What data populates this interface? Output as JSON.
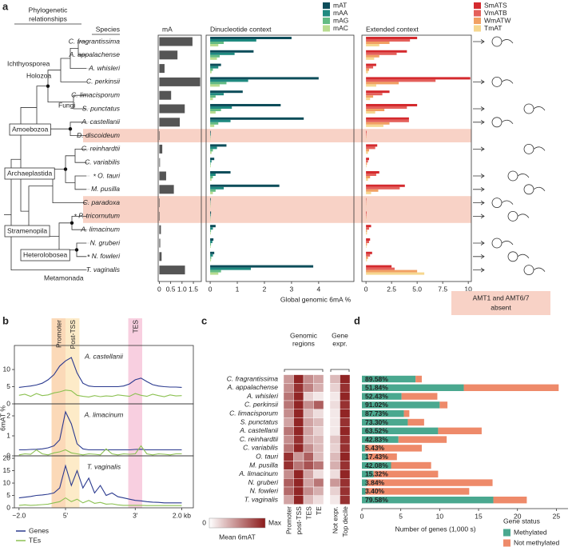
{
  "panel_labels": [
    "a",
    "b",
    "c",
    "d"
  ],
  "tree": {
    "header": [
      "Phylogenetic",
      "relationships"
    ],
    "species_header": "Species",
    "species": [
      "C. fragrantissima",
      "A. appalachense",
      "A. whisleri",
      "C. perkinsii",
      "C. limacisporum",
      "S. punctatus",
      "A. castellanii",
      "D. discoideum",
      "C. reinhardtii",
      "C. variabilis",
      "O. tauri",
      "M. pusilla",
      "C. paradoxa",
      "P. tricornutum",
      "A. limacinum",
      "N. gruberi",
      "N. fowleri",
      "T. vaginalis"
    ],
    "star": "*",
    "starred": [
      10,
      13,
      16
    ],
    "clades": [
      {
        "name": "Ichthyosporea",
        "boxed": false
      },
      {
        "name": "Holozoa",
        "boxed": false
      },
      {
        "name": "Fungi",
        "boxed": false
      },
      {
        "name": "Amoebozoa",
        "boxed": true
      },
      {
        "name": "Archaeplastida",
        "boxed": true
      },
      {
        "name": "Stramenopila",
        "boxed": true
      },
      {
        "name": "Heterolobosea",
        "boxed": true
      },
      {
        "name": "Metamonada",
        "boxed": false
      }
    ]
  },
  "highlight": {
    "rows": [
      7,
      12,
      13
    ],
    "color": "#f8d2c6",
    "note": [
      "AMT1 and AMT6/7",
      "absent"
    ]
  },
  "chart_data": [
    {
      "type": "bar",
      "orientation": "horizontal",
      "title": "mA",
      "color": "#555555",
      "values": [
        1.46,
        0.8,
        0.23,
        1.8,
        0.52,
        1.12,
        0.9,
        0.02,
        0.13,
        0.03,
        0.3,
        0.64,
        0.02,
        0.02,
        0.07,
        0.04,
        0.1,
        1.13
      ],
      "xlim": [
        -0.05,
        1.85
      ],
      "xticks": [
        0,
        0.5,
        {
          "value": 1,
          "label": "1.0"
        },
        1.5
      ]
    },
    {
      "type": "bar",
      "orientation": "horizontal",
      "title": "Dinucleotide context",
      "xlabel": "Global genomic 6mA %",
      "series": [
        {
          "name": "mAT",
          "color": "#0d4d5a",
          "values": [
            3.0,
            1.6,
            0.4,
            4.0,
            1.2,
            2.6,
            3.45,
            0.02,
            0.6,
            0.15,
            0.75,
            2.55,
            0.02,
            0.03,
            0.2,
            0.12,
            0.15,
            3.8
          ]
        },
        {
          "name": "mAA",
          "color": "#1f8a80",
          "values": [
            1.7,
            0.9,
            0.3,
            1.4,
            0.5,
            0.8,
            0.75,
            0.02,
            0.25,
            0.05,
            0.2,
            0.5,
            0.01,
            0.02,
            0.1,
            0.08,
            0.1,
            1.5
          ]
        },
        {
          "name": "mAG",
          "color": "#63bb84",
          "values": [
            0.5,
            0.35,
            0.1,
            0.6,
            0.2,
            0.4,
            0.3,
            0.01,
            0.1,
            0.02,
            0.1,
            0.2,
            0.01,
            0.01,
            0.03,
            0.03,
            0.04,
            0.4
          ]
        },
        {
          "name": "mAC",
          "color": "#b8dc90",
          "values": [
            0.3,
            0.25,
            0.05,
            0.35,
            0.1,
            0.2,
            0.15,
            0.01,
            0.05,
            0.02,
            0.05,
            0.1,
            0.01,
            0.01,
            0.02,
            0.02,
            0.03,
            0.3
          ]
        }
      ],
      "xlim": [
        -0.15,
        5.3
      ],
      "xticks": [
        0,
        1,
        2,
        3,
        4
      ]
    },
    {
      "type": "bar",
      "orientation": "horizontal",
      "title": "Extended context",
      "series": [
        {
          "name": "SmATS",
          "color": "#d42a2e",
          "values": [
            5.0,
            4.0,
            1.0,
            10.2,
            2.3,
            5.0,
            4.2,
            0.05,
            1.1,
            0.3,
            1.3,
            3.8,
            0.03,
            0.05,
            0.5,
            0.4,
            0.6,
            2.5
          ]
        },
        {
          "name": "VmATB",
          "color": "#e4605b",
          "values": [
            4.3,
            3.0,
            0.7,
            6.8,
            1.6,
            4.0,
            4.2,
            0.04,
            0.9,
            0.2,
            1.0,
            3.3,
            0.02,
            0.04,
            0.3,
            0.3,
            0.4,
            2.8
          ]
        },
        {
          "name": "WmATW",
          "color": "#f1a063",
          "values": [
            2.3,
            1.3,
            0.3,
            3.2,
            0.7,
            1.8,
            2.3,
            0.03,
            0.3,
            0.1,
            0.4,
            1.2,
            0.02,
            0.03,
            0.1,
            0.1,
            0.2,
            5.0
          ]
        },
        {
          "name": "TmAT",
          "color": "#f6d78f",
          "values": [
            1.3,
            0.8,
            0.2,
            1.0,
            0.4,
            0.9,
            1.7,
            0.02,
            0.2,
            0.05,
            0.2,
            0.5,
            0.01,
            0.02,
            0.1,
            0.05,
            0.1,
            5.7
          ]
        }
      ],
      "xlim": [
        -0.4,
        10.3
      ],
      "xticks": [
        0,
        2.5,
        {
          "value": 5,
          "label": "5.0"
        },
        7.5,
        10
      ]
    },
    {
      "type": "line",
      "ylabel": "6mAT %",
      "x": [
        -2,
        -1.75,
        -1.5,
        -1.25,
        -1,
        -0.75,
        -0.5,
        -0.25,
        0,
        0.25,
        0.5,
        0.75,
        1,
        1.25,
        1.5,
        1.75,
        2,
        2.25,
        2.5,
        2.75,
        3,
        3.25,
        3.5,
        3.75,
        4,
        4.25,
        4.5,
        4.75,
        5
      ],
      "xlim": [
        -2.2,
        5.5
      ],
      "xticks": [
        {
          "value": -2,
          "label": "−2.0"
        },
        {
          "value": 0,
          "label": "5'"
        },
        {
          "value": 3,
          "label": "3'"
        },
        {
          "value": 5,
          "label": "2.0 kb"
        }
      ],
      "bands": [
        {
          "label": "Promoter",
          "from": -0.6,
          "to": 0,
          "color": "#fbd9b8"
        },
        {
          "label": "Post-TSS",
          "from": 0,
          "to": 0.6,
          "color": "#fdebc8"
        },
        {
          "label": "TES",
          "from": 2.7,
          "to": 3.3,
          "color": "#f8cfe0"
        }
      ],
      "series": [
        {
          "name": "Genes",
          "color": "#2b3a8f"
        },
        {
          "name": "TEs",
          "color": "#8cc152"
        }
      ],
      "panels": [
        {
          "title": "A. castellanii",
          "ylim": [
            0,
            17
          ],
          "yticks": [
            0,
            5,
            10
          ],
          "values": [
            [
              4.8,
              5,
              5.2,
              5.5,
              6,
              7,
              8.5,
              11,
              12.5,
              13.5,
              9,
              6,
              5.2,
              5,
              5,
              5,
              5,
              5,
              5.2,
              5.8,
              7,
              7.5,
              6.5,
              5.6,
              5.2,
              5,
              4.9,
              4.9,
              4.8
            ],
            [
              2.5,
              2.8,
              2.2,
              3,
              2.4,
              2.6,
              3.2,
              3.5,
              4,
              3.8,
              2.5,
              2.2,
              2,
              2.4,
              2.1,
              2.3,
              2.2,
              2.6,
              2.4,
              2.2,
              3,
              2.5,
              2.2,
              2.8,
              2.4,
              2.1,
              2.6,
              2.3,
              2.4
            ]
          ]
        },
        {
          "title": "A. limacinum",
          "ylim": [
            0,
            2.6
          ],
          "yticks": [
            0,
            1,
            2
          ],
          "values": [
            [
              0.3,
              0.3,
              0.32,
              0.33,
              0.35,
              0.4,
              0.5,
              0.8,
              2.2,
              1.6,
              0.6,
              0.35,
              0.3,
              0.3,
              0.3,
              0.3,
              0.3,
              0.3,
              0.3,
              0.3,
              0.32,
              0.33,
              0.3,
              0.3,
              0.3,
              0.3,
              0.3,
              0.3,
              0.3
            ],
            [
              0.05,
              0.1,
              0.08,
              0.3,
              0.1,
              0.05,
              0.15,
              0.2,
              0.3,
              0.15,
              0.1,
              0.05,
              0.1,
              0.08,
              0.05,
              0.35,
              0.1,
              0.05,
              0.1,
              0.08,
              0.1,
              0.5,
              0.1,
              0.05,
              0.1,
              0.08,
              0.05,
              0.1,
              0.1
            ]
          ]
        },
        {
          "title": "T. vaginalis",
          "ylim": [
            0,
            21
          ],
          "yticks": [
            0,
            5,
            10,
            15,
            20
          ],
          "values": [
            [
              4,
              4.3,
              4.6,
              5,
              5.2,
              5.5,
              6,
              8,
              17,
              9,
              15,
              8,
              12,
              6,
              9,
              5,
              6,
              4.5,
              4,
              3.5,
              3,
              2.8,
              2.5,
              2.3,
              2.2,
              2,
              2,
              2,
              2
            ],
            [
              1,
              1.2,
              1,
              1.1,
              1.3,
              1.5,
              2,
              2.5,
              4,
              2.5,
              3.5,
              2,
              3,
              1.8,
              2.2,
              1.5,
              1.6,
              1.2,
              1,
              1,
              1,
              1,
              0.9,
              0.9,
              0.9,
              0.9,
              0.9,
              0.9,
              0.9
            ]
          ]
        }
      ]
    },
    {
      "type": "heatmap",
      "categories": [
        "C. fragrantissima",
        "A. appalachense",
        "A. whisleri",
        "C. perkinsii",
        "C. limacisporum",
        "S. punctatus",
        "A. castellanii",
        "C. reinhardtii",
        "C. variabilis",
        "O. tauri",
        "M. pusilla",
        "A. limacinum",
        "N. gruberi",
        "N. fowleri",
        "T. vaginalis"
      ],
      "column_groups": [
        {
          "title": [
            "Genomic",
            "regions"
          ],
          "columns": [
            "Promoter",
            "post-TSS",
            "TES",
            "TE"
          ]
        },
        {
          "title": [
            "Gene",
            "expr."
          ],
          "columns": [
            "Not expr.",
            "Top decile"
          ]
        }
      ],
      "values": [
        [
          0.45,
          0.95,
          0.5,
          0.4,
          0.3,
          0.95
        ],
        [
          0.5,
          0.9,
          0.55,
          0.35,
          0.2,
          0.9
        ],
        [
          0.6,
          0.95,
          0.2,
          0.1,
          0.1,
          0.95
        ],
        [
          0.6,
          0.95,
          0.5,
          0.7,
          0.15,
          0.9
        ],
        [
          0.5,
          0.95,
          0.3,
          0.15,
          0.1,
          0.95
        ],
        [
          0.4,
          0.95,
          0.4,
          0.3,
          0.1,
          0.9
        ],
        [
          0.6,
          0.95,
          0.4,
          0.2,
          0.1,
          0.95
        ],
        [
          0.5,
          0.9,
          0.35,
          0.3,
          0.25,
          0.9
        ],
        [
          0.6,
          0.95,
          0.5,
          0.3,
          0.2,
          0.9
        ],
        [
          0.9,
          0.45,
          0.7,
          0.3,
          0.3,
          0.95
        ],
        [
          0.9,
          0.6,
          0.75,
          0.6,
          0.35,
          0.9
        ],
        [
          0.5,
          0.95,
          0.4,
          0.15,
          0.15,
          0.95
        ],
        [
          0.7,
          0.95,
          0.4,
          0.6,
          0.45,
          0.9
        ],
        [
          0.65,
          0.95,
          0.5,
          0.35,
          0.2,
          0.9
        ],
        [
          0.4,
          0.95,
          0.3,
          0.15,
          0.1,
          0.9
        ]
      ],
      "zlim": [
        0,
        1
      ],
      "colors": [
        "#ffffff",
        "#8b1a1a"
      ],
      "colorbar": {
        "min_label": "0",
        "max_label": "Max",
        "title": "Mean 6mAT"
      }
    },
    {
      "type": "stacked-bar",
      "orientation": "horizontal",
      "xlabel": "Number of genes (1,000 s)",
      "legend_title": "Gene status",
      "series": [
        {
          "name": "Methylated",
          "color": "#4aa88f",
          "values": [
            6.9,
            13.1,
            5.1,
            10.0,
            5.4,
            5.9,
            9.8,
            4.7,
            0.4,
            0.8,
            3.75,
            1.5,
            0.65,
            0.47,
            16.9
          ]
        },
        {
          "name": "Not methylated",
          "color": "#ee8a6a",
          "values": [
            0.8,
            12.2,
            4.6,
            1.0,
            0.7,
            2.1,
            5.6,
            6.2,
            7.3,
            3.7,
            5.15,
            8.3,
            16.15,
            13.33,
            4.3
          ]
        }
      ],
      "percent": {
        "values": [
          89.58,
          51.84,
          52.43,
          91.02,
          87.73,
          73.3,
          63.52,
          42.83,
          5.43,
          17.43,
          42.08,
          15.32,
          3.84,
          3.4,
          79.58
        ],
        "value_labels": [
          "89.58%",
          "51.84%",
          "52.43%",
          "91.02%",
          "87.73%",
          "73.30%",
          "63.52%",
          "42.83%",
          "5.43%",
          "17.43%",
          "42.08%",
          "15.32%",
          "3.84%",
          "3.40%",
          "79.58%"
        ]
      },
      "xlim": [
        0,
        26.5
      ],
      "xticks": [
        0,
        5,
        10,
        15,
        20,
        25
      ]
    }
  ]
}
